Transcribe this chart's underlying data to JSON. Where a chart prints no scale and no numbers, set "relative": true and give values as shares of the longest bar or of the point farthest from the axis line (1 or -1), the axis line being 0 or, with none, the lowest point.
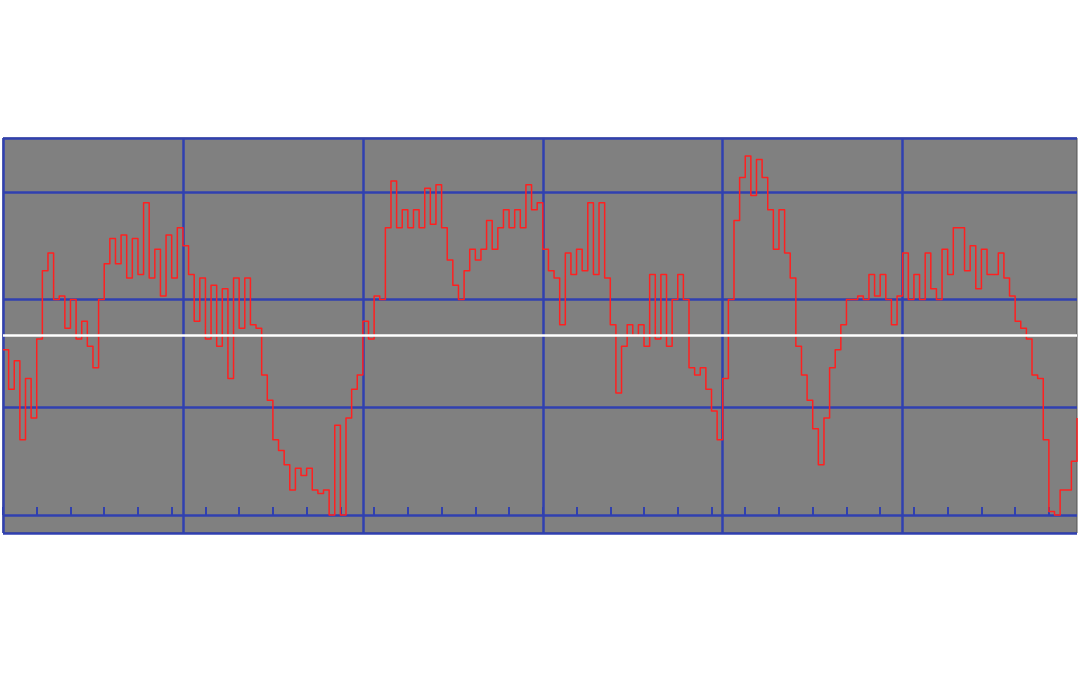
{
  "chart_data": {
    "type": "step",
    "relative": true,
    "grid": true,
    "marker": "none",
    "line_style": "solid",
    "categories": [
      null,
      null,
      null,
      null,
      null,
      null,
      null,
      null,
      null,
      null,
      null,
      null,
      null,
      null,
      null,
      null,
      null,
      null,
      null,
      null,
      null,
      null,
      null,
      null,
      null,
      null,
      null,
      null,
      null,
      null,
      null,
      null,
      null,
      null,
      null,
      null,
      null,
      null,
      null,
      null,
      null,
      null,
      null,
      null,
      null,
      null,
      null,
      null,
      null,
      null,
      null,
      null,
      null,
      null,
      null,
      null,
      null,
      null,
      null,
      null,
      null,
      null,
      null,
      null,
      null,
      null,
      null,
      null,
      null,
      null,
      null,
      null,
      null,
      null,
      null,
      null,
      null,
      null,
      null,
      null,
      null,
      null,
      null,
      null,
      null,
      null,
      null,
      null,
      null,
      null,
      null,
      null,
      null,
      null,
      null,
      null,
      null,
      null,
      null,
      null,
      null,
      null,
      null,
      null,
      null,
      null,
      null,
      null,
      null,
      null,
      null,
      null,
      null,
      null,
      null,
      null,
      null,
      null,
      null,
      null,
      null,
      null,
      null,
      null,
      null,
      null,
      null,
      null,
      null,
      null,
      null,
      null,
      null,
      null,
      null,
      null,
      null,
      null,
      null,
      null,
      null,
      null,
      null,
      null,
      null,
      null,
      null,
      null,
      null,
      null,
      null,
      null,
      null,
      null,
      null,
      null,
      null,
      null,
      null,
      null,
      null,
      null,
      null,
      null,
      null,
      null,
      null,
      null,
      null,
      null,
      null,
      null,
      null,
      null,
      null,
      null,
      null,
      null,
      null,
      null,
      null,
      null,
      null,
      null,
      null,
      null,
      null,
      null,
      null,
      null,
      null,
      null
    ],
    "series": [
      {
        "color": "#ff2020",
        "values": [
          0.46,
          0.35,
          0.43,
          0.21,
          0.38,
          0.27,
          0.49,
          0.68,
          0.73,
          0.6,
          0.61,
          0.52,
          0.6,
          0.49,
          0.54,
          0.47,
          0.41,
          0.6,
          0.7,
          0.77,
          0.7,
          0.78,
          0.66,
          0.77,
          0.67,
          0.87,
          0.66,
          0.74,
          0.61,
          0.78,
          0.66,
          0.8,
          0.75,
          0.67,
          0.54,
          0.66,
          0.49,
          0.64,
          0.47,
          0.63,
          0.38,
          0.66,
          0.52,
          0.66,
          0.53,
          0.52,
          0.39,
          0.32,
          0.21,
          0.18,
          0.14,
          0.07,
          0.13,
          0.11,
          0.13,
          0.07,
          0.06,
          0.07,
          0,
          0.25,
          0,
          0.27,
          0.35,
          0.39,
          0.54,
          0.49,
          0.61,
          0.6,
          0.8,
          0.93,
          0.8,
          0.85,
          0.8,
          0.85,
          0.8,
          0.91,
          0.81,
          0.92,
          0.8,
          0.71,
          0.64,
          0.6,
          0.68,
          0.74,
          0.71,
          0.74,
          0.82,
          0.74,
          0.8,
          0.85,
          0.8,
          0.85,
          0.8,
          0.92,
          0.85,
          0.87,
          0.74,
          0.68,
          0.66,
          0.53,
          0.73,
          0.67,
          0.74,
          0.68,
          0.87,
          0.67,
          0.87,
          0.66,
          0.53,
          0.34,
          0.47,
          0.53,
          0.5,
          0.53,
          0.47,
          0.67,
          0.49,
          0.67,
          0.47,
          0.6,
          0.67,
          0.6,
          0.41,
          0.39,
          0.41,
          0.35,
          0.29,
          0.21,
          0.38,
          0.6,
          0.82,
          0.94,
          1,
          0.89,
          0.99,
          0.94,
          0.85,
          0.74,
          0.85,
          0.73,
          0.66,
          0.47,
          0.39,
          0.32,
          0.24,
          0.14,
          0.27,
          0.41,
          0.46,
          0.53,
          0.6,
          0.6,
          0.61,
          0.6,
          0.67,
          0.61,
          0.67,
          0.6,
          0.53,
          0.61,
          0.73,
          0.6,
          0.67,
          0.6,
          0.73,
          0.63,
          0.6,
          0.74,
          0.67,
          0.8,
          0.8,
          0.68,
          0.75,
          0.63,
          0.74,
          0.67,
          0.67,
          0.73,
          0.66,
          0.61,
          0.54,
          0.52,
          0.49,
          0.39,
          0.38,
          0.21,
          0.01,
          0,
          0.07,
          0.07,
          0.15,
          0.27
        ]
      }
    ],
    "ref_lines": [
      {
        "axis": "y",
        "value": 0.5,
        "color": "#ffffff"
      }
    ]
  }
}
